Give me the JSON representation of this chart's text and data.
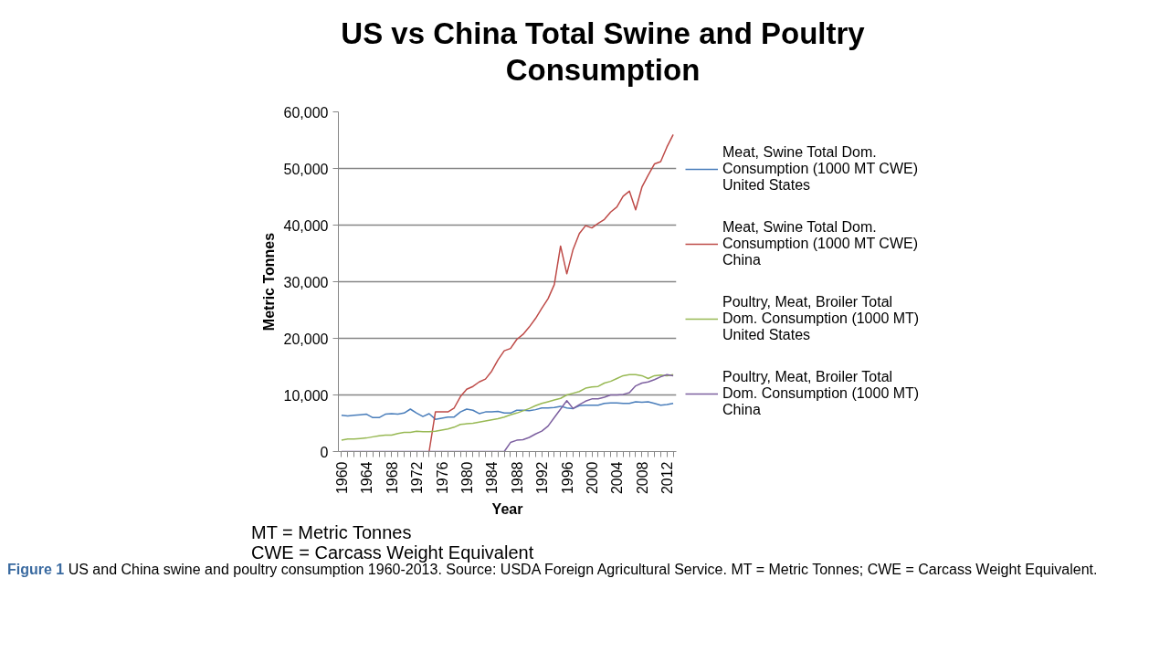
{
  "chart_data": {
    "type": "line",
    "title": "US vs China Total Swine and Poultry Consumption",
    "xlabel": "Year",
    "ylabel": "Metric Tonnes",
    "x": [
      1960,
      1961,
      1962,
      1963,
      1964,
      1965,
      1966,
      1967,
      1968,
      1969,
      1970,
      1971,
      1972,
      1973,
      1974,
      1975,
      1976,
      1977,
      1978,
      1979,
      1980,
      1981,
      1982,
      1983,
      1984,
      1985,
      1986,
      1987,
      1988,
      1989,
      1990,
      1991,
      1992,
      1993,
      1994,
      1995,
      1996,
      1997,
      1998,
      1999,
      2000,
      2001,
      2002,
      2003,
      2004,
      2005,
      2006,
      2007,
      2008,
      2009,
      2010,
      2011,
      2012,
      2013
    ],
    "series": [
      {
        "name": "Meat, Swine Total Dom. Consumption (1000 MT CWE) United States",
        "color": "#4a7ebb",
        "values": [
          6400,
          6300,
          6400,
          6500,
          6600,
          6000,
          6000,
          6600,
          6700,
          6600,
          6800,
          7500,
          6800,
          6200,
          6700,
          5700,
          5900,
          6100,
          6100,
          7000,
          7500,
          7300,
          6700,
          7000,
          7000,
          7100,
          6800,
          6800,
          7300,
          7300,
          7200,
          7400,
          7700,
          7700,
          7800,
          8000,
          7700,
          7600,
          8100,
          8200,
          8200,
          8200,
          8500,
          8600,
          8600,
          8500,
          8500,
          8800,
          8700,
          8800,
          8500,
          8200,
          8300,
          8500
        ]
      },
      {
        "name": "Meat, Swine Total Dom. Consumption (1000 MT CWE) China",
        "color": "#be4b48",
        "values": [
          null,
          null,
          null,
          null,
          null,
          null,
          null,
          null,
          null,
          null,
          null,
          null,
          null,
          null,
          0,
          7000,
          7000,
          7000,
          7700,
          9700,
          11000,
          11500,
          12300,
          12800,
          14200,
          16200,
          17800,
          18200,
          19800,
          20700,
          22000,
          23500,
          25300,
          27000,
          29500,
          36300,
          31400,
          35700,
          38500,
          39900,
          39500,
          40300,
          41000,
          42300,
          43200,
          45100,
          46000,
          42700,
          46700,
          48800,
          50800,
          51200,
          53800,
          56000
        ]
      },
      {
        "name": "Poultry, Meat, Broiler Total Dom. Consumption (1000 MT) United States",
        "color": "#98b954",
        "values": [
          2000,
          2200,
          2200,
          2300,
          2400,
          2600,
          2800,
          2900,
          2900,
          3200,
          3400,
          3400,
          3600,
          3500,
          3500,
          3600,
          3800,
          4000,
          4300,
          4800,
          4900,
          5000,
          5200,
          5400,
          5600,
          5800,
          6100,
          6500,
          6800,
          7200,
          7600,
          8100,
          8500,
          8800,
          9100,
          9400,
          10000,
          10300,
          10600,
          11200,
          11400,
          11500,
          12100,
          12400,
          12900,
          13400,
          13600,
          13600,
          13400,
          12900,
          13400,
          13500,
          13400,
          13600
        ]
      },
      {
        "name": "Poultry, Meat, Broiler Total Dom. Consumption (1000 MT) China",
        "color": "#7d60a0",
        "values": [
          0,
          0,
          0,
          0,
          0,
          0,
          0,
          0,
          0,
          0,
          0,
          0,
          0,
          0,
          0,
          0,
          0,
          0,
          0,
          0,
          0,
          0,
          0,
          0,
          0,
          0,
          0,
          1600,
          2000,
          2100,
          2500,
          3100,
          3600,
          4500,
          6000,
          7500,
          9000,
          7600,
          8300,
          8900,
          9300,
          9300,
          9600,
          10000,
          10000,
          10100,
          10400,
          11600,
          12100,
          12300,
          12700,
          13200,
          13600,
          13400
        ]
      }
    ],
    "xlim": [
      1959.5,
      2013.5
    ],
    "xticks": [
      1960,
      {
        "value": 1961,
        "label": null
      },
      {
        "value": 1962,
        "label": null
      },
      {
        "value": 1963,
        "label": null
      },
      1964,
      {
        "value": 1965,
        "label": null
      },
      {
        "value": 1966,
        "label": null
      },
      {
        "value": 1967,
        "label": null
      },
      1968,
      {
        "value": 1969,
        "label": null
      },
      {
        "value": 1970,
        "label": null
      },
      {
        "value": 1971,
        "label": null
      },
      1972,
      {
        "value": 1973,
        "label": null
      },
      {
        "value": 1974,
        "label": null
      },
      {
        "value": 1975,
        "label": null
      },
      1976,
      {
        "value": 1977,
        "label": null
      },
      {
        "value": 1978,
        "label": null
      },
      {
        "value": 1979,
        "label": null
      },
      1980,
      {
        "value": 1981,
        "label": null
      },
      {
        "value": 1982,
        "label": null
      },
      {
        "value": 1983,
        "label": null
      },
      1984,
      {
        "value": 1985,
        "label": null
      },
      {
        "value": 1986,
        "label": null
      },
      {
        "value": 1987,
        "label": null
      },
      1988,
      {
        "value": 1989,
        "label": null
      },
      {
        "value": 1990,
        "label": null
      },
      {
        "value": 1991,
        "label": null
      },
      1992,
      {
        "value": 1993,
        "label": null
      },
      {
        "value": 1994,
        "label": null
      },
      {
        "value": 1995,
        "label": null
      },
      1996,
      {
        "value": 1997,
        "label": null
      },
      {
        "value": 1998,
        "label": null
      },
      {
        "value": 1999,
        "label": null
      },
      2000,
      {
        "value": 2001,
        "label": null
      },
      {
        "value": 2002,
        "label": null
      },
      {
        "value": 2003,
        "label": null
      },
      2004,
      {
        "value": 2005,
        "label": null
      },
      {
        "value": 2006,
        "label": null
      },
      {
        "value": 2007,
        "label": null
      },
      2008,
      {
        "value": 2009,
        "label": null
      },
      {
        "value": 2010,
        "label": null
      },
      {
        "value": 2011,
        "label": null
      },
      2012,
      {
        "value": 2013,
        "label": null
      }
    ],
    "ylim": [
      0,
      60000
    ],
    "yticks": [
      {
        "value": 0,
        "label": "0"
      },
      {
        "value": 10000,
        "label": "10,000"
      },
      {
        "value": 20000,
        "label": "20,000"
      },
      {
        "value": 30000,
        "label": "30,000"
      },
      {
        "value": 40000,
        "label": "40,000"
      },
      {
        "value": 50000,
        "label": "50,000"
      },
      {
        "value": 60000,
        "label": "60,000"
      }
    ],
    "grid": "y",
    "legend": "right",
    "marker": "none",
    "line_style": "solid",
    "annotations": [
      "MT = Metric Tonnes",
      "CWE = Carcass Weight Equivalent",
      "Figure 1 US and China swine and poultry consumption 1960-2013. Source: USDA Foreign Agricultural Service. MT = Metric Tonnes; CWE = Carcass Weight Equivalent."
    ]
  }
}
